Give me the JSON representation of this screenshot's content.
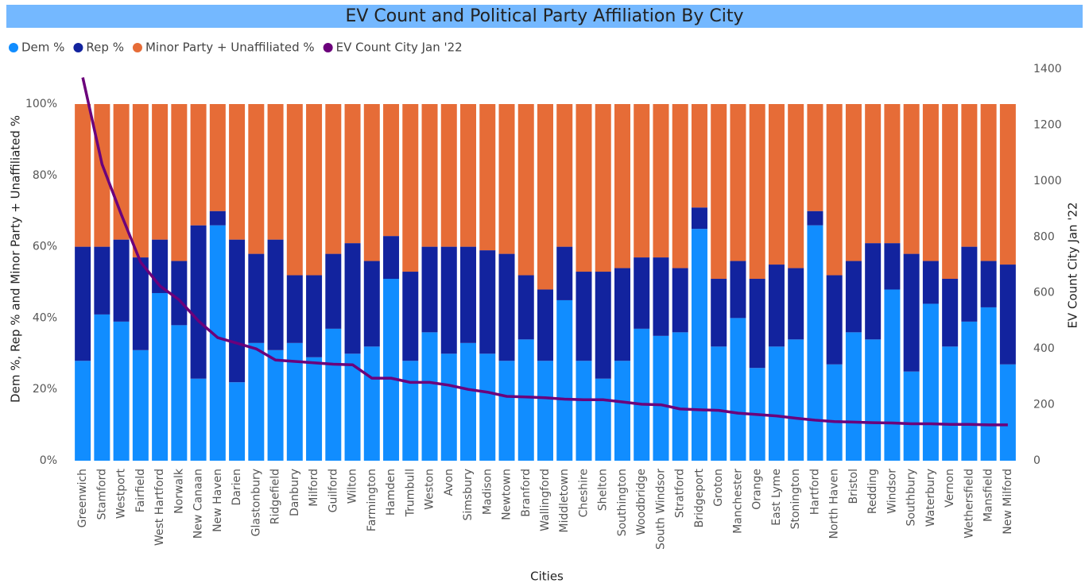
{
  "chart_data": {
    "type": "stacked_bar_line",
    "title": "EV Count and Political Party Affiliation By City",
    "x_label": "Cities",
    "y_label": "Dem %, Rep % and Minor Party + Unaffiliated %",
    "y2_label": "EV Count City Jan '22",
    "categories": [
      "Greenwich",
      "Stamford",
      "Westport",
      "Fairfield",
      "West Hartford",
      "Norwalk",
      "New Canaan",
      "New Haven",
      "Darien",
      "Glastonbury",
      "Ridgefield",
      "Danbury",
      "Milford",
      "Guilford",
      "Wilton",
      "Farmington",
      "Hamden",
      "Trumbull",
      "Weston",
      "Avon",
      "Simsbury",
      "Madison",
      "Newtown",
      "Branford",
      "Wallingford",
      "Middletown",
      "Cheshire",
      "Shelton",
      "Southington",
      "Woodbridge",
      "South Windsor",
      "Stratford",
      "Bridgeport",
      "Groton",
      "Manchester",
      "Orange",
      "East Lyme",
      "Stonington",
      "Hartford",
      "North Haven",
      "Bristol",
      "Redding",
      "Windsor",
      "Southbury",
      "Waterbury",
      "Vernon",
      "Wethersfield",
      "Mansfield",
      "New Milford"
    ],
    "series": [
      {
        "name": "Dem %",
        "color": "#118DFF",
        "values": [
          28,
          41,
          39,
          31,
          47,
          38,
          23,
          66,
          22,
          33,
          31,
          33,
          29,
          37,
          30,
          32,
          51,
          28,
          36,
          30,
          33,
          30,
          28,
          34,
          28,
          45,
          28,
          23,
          28,
          37,
          35,
          36,
          65,
          32,
          40,
          26,
          32,
          34,
          66,
          27,
          36,
          34,
          48,
          25,
          44,
          32,
          39,
          43,
          27
        ]
      },
      {
        "name": "Rep %",
        "color": "#12239E",
        "values": [
          32,
          19,
          23,
          26,
          15,
          18,
          43,
          4,
          40,
          25,
          31,
          19,
          23,
          21,
          31,
          24,
          12,
          25,
          24,
          30,
          27,
          29,
          30,
          18,
          20,
          15,
          25,
          30,
          26,
          20,
          22,
          18,
          6,
          19,
          16,
          25,
          23,
          20,
          4,
          25,
          20,
          27,
          13,
          33,
          12,
          19,
          21,
          13,
          28
        ]
      },
      {
        "name": "Minor Party + Unaffiliated %",
        "color": "#E66C37",
        "values": [
          40,
          40,
          38,
          43,
          38,
          44,
          34,
          30,
          38,
          42,
          38,
          48,
          48,
          42,
          39,
          44,
          37,
          47,
          40,
          40,
          40,
          41,
          42,
          48,
          52,
          40,
          47,
          47,
          46,
          43,
          43,
          46,
          29,
          49,
          44,
          49,
          45,
          46,
          30,
          48,
          44,
          39,
          39,
          42,
          44,
          49,
          40,
          44,
          45
        ]
      },
      {
        "name": "EV Count City Jan '22",
        "color": "#6B007B",
        "axis": "y2",
        "values": [
          1370,
          1060,
          880,
          710,
          625,
          575,
          500,
          440,
          420,
          400,
          360,
          355,
          350,
          345,
          343,
          295,
          295,
          280,
          280,
          270,
          255,
          245,
          230,
          228,
          225,
          220,
          218,
          218,
          210,
          202,
          200,
          185,
          182,
          180,
          170,
          165,
          160,
          152,
          145,
          140,
          138,
          136,
          135,
          132,
          132,
          130,
          130,
          128,
          128
        ]
      }
    ],
    "ylim": [
      0,
      100
    ],
    "yticks": [
      {
        "value": 0,
        "label": "0%"
      },
      {
        "value": 20,
        "label": "20%"
      },
      {
        "value": 40,
        "label": "40%"
      },
      {
        "value": 60,
        "label": "60%"
      },
      {
        "value": 80,
        "label": "80%"
      },
      {
        "value": 100,
        "label": "100%"
      }
    ],
    "y2lim": [
      0,
      1400
    ],
    "y2ticks": [
      0,
      200,
      400,
      600,
      800,
      1000,
      1200,
      1400
    ],
    "grid": false
  }
}
